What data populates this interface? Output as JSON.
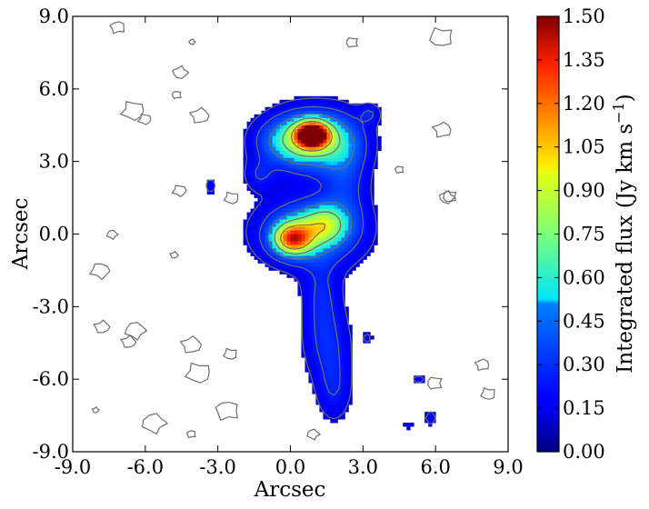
{
  "chart_data": {
    "type": "heatmap",
    "title": "",
    "xlabel": "Arcsec",
    "ylabel": "Arcsec",
    "xlim": [
      -9.0,
      9.0
    ],
    "ylim": [
      -9.0,
      9.0
    ],
    "x_ticks": [
      "-9.0",
      "-6.0",
      "-3.0",
      "0.0",
      "3.0",
      "6.0",
      "9.0"
    ],
    "x_tick_values": [
      -9,
      -6,
      -3,
      0,
      3,
      6,
      9
    ],
    "y_ticks": [
      "-9.0",
      "-6.0",
      "-3.0",
      "0.0",
      "3.0",
      "6.0",
      "9.0"
    ],
    "y_tick_values": [
      -9,
      -6,
      -3,
      0,
      3,
      6,
      9
    ],
    "grid": false,
    "colormap": "jet",
    "colorbar": {
      "label_main": "Integrated flux (Jy km s",
      "label_sup": "−1",
      "label_end": ")",
      "range": [
        0.0,
        1.5
      ],
      "ticks": [
        "0.00",
        "0.15",
        "0.30",
        "0.45",
        "0.60",
        "0.75",
        "0.90",
        "1.05",
        "1.20",
        "1.35",
        "1.50"
      ],
      "tick_values": [
        0,
        0.15,
        0.3,
        0.45,
        0.6,
        0.75,
        0.9,
        1.05,
        1.2,
        1.35,
        1.5
      ]
    },
    "emission_components": [
      {
        "x": 0.9,
        "y": 4.1,
        "peak": 1.5,
        "sx": 0.45,
        "sy": 0.35
      },
      {
        "x": 1.0,
        "y": 3.9,
        "peak": 0.7,
        "sx": 1.3,
        "sy": 0.9
      },
      {
        "x": -0.2,
        "y": 3.8,
        "peak": 0.25,
        "sx": 1.0,
        "sy": 0.7
      },
      {
        "x": 2.3,
        "y": 2.3,
        "peak": 0.25,
        "sx": 0.7,
        "sy": 1.4
      },
      {
        "x": 0.1,
        "y": -0.2,
        "peak": 0.95,
        "sx": 0.55,
        "sy": 0.45
      },
      {
        "x": 0.8,
        "y": 0.1,
        "peak": 0.55,
        "sx": 1.5,
        "sy": 1.0
      },
      {
        "x": 1.4,
        "y": 0.4,
        "peak": 0.45,
        "sx": 0.6,
        "sy": 0.5
      },
      {
        "x": -1.3,
        "y": 2.4,
        "peak": 0.2,
        "sx": 0.45,
        "sy": 0.45
      },
      {
        "x": 1.3,
        "y": -2.5,
        "peak": 0.22,
        "sx": 0.6,
        "sy": 1.0
      },
      {
        "x": 1.5,
        "y": -4.5,
        "peak": 0.25,
        "sx": 0.75,
        "sy": 1.1
      },
      {
        "x": 1.8,
        "y": -6.5,
        "peak": 0.22,
        "sx": 0.55,
        "sy": 1.0
      },
      {
        "x": 3.3,
        "y": 5.0,
        "peak": 0.2,
        "sx": 0.3,
        "sy": 0.3
      },
      {
        "x": -3.3,
        "y": 2.0,
        "peak": 0.2,
        "sx": 0.18,
        "sy": 0.25
      },
      {
        "x": 5.8,
        "y": -7.6,
        "peak": 0.2,
        "sx": 0.2,
        "sy": 0.25
      },
      {
        "x": 5.3,
        "y": -6.0,
        "peak": 0.18,
        "sx": 0.25,
        "sy": 0.18
      },
      {
        "x": 4.9,
        "y": -7.9,
        "peak": 0.15,
        "sx": 0.2,
        "sy": 0.15
      },
      {
        "x": 3.2,
        "y": -4.3,
        "peak": 0.14,
        "sx": 0.2,
        "sy": 0.2
      }
    ],
    "contour_color": "#6e6e6e"
  }
}
